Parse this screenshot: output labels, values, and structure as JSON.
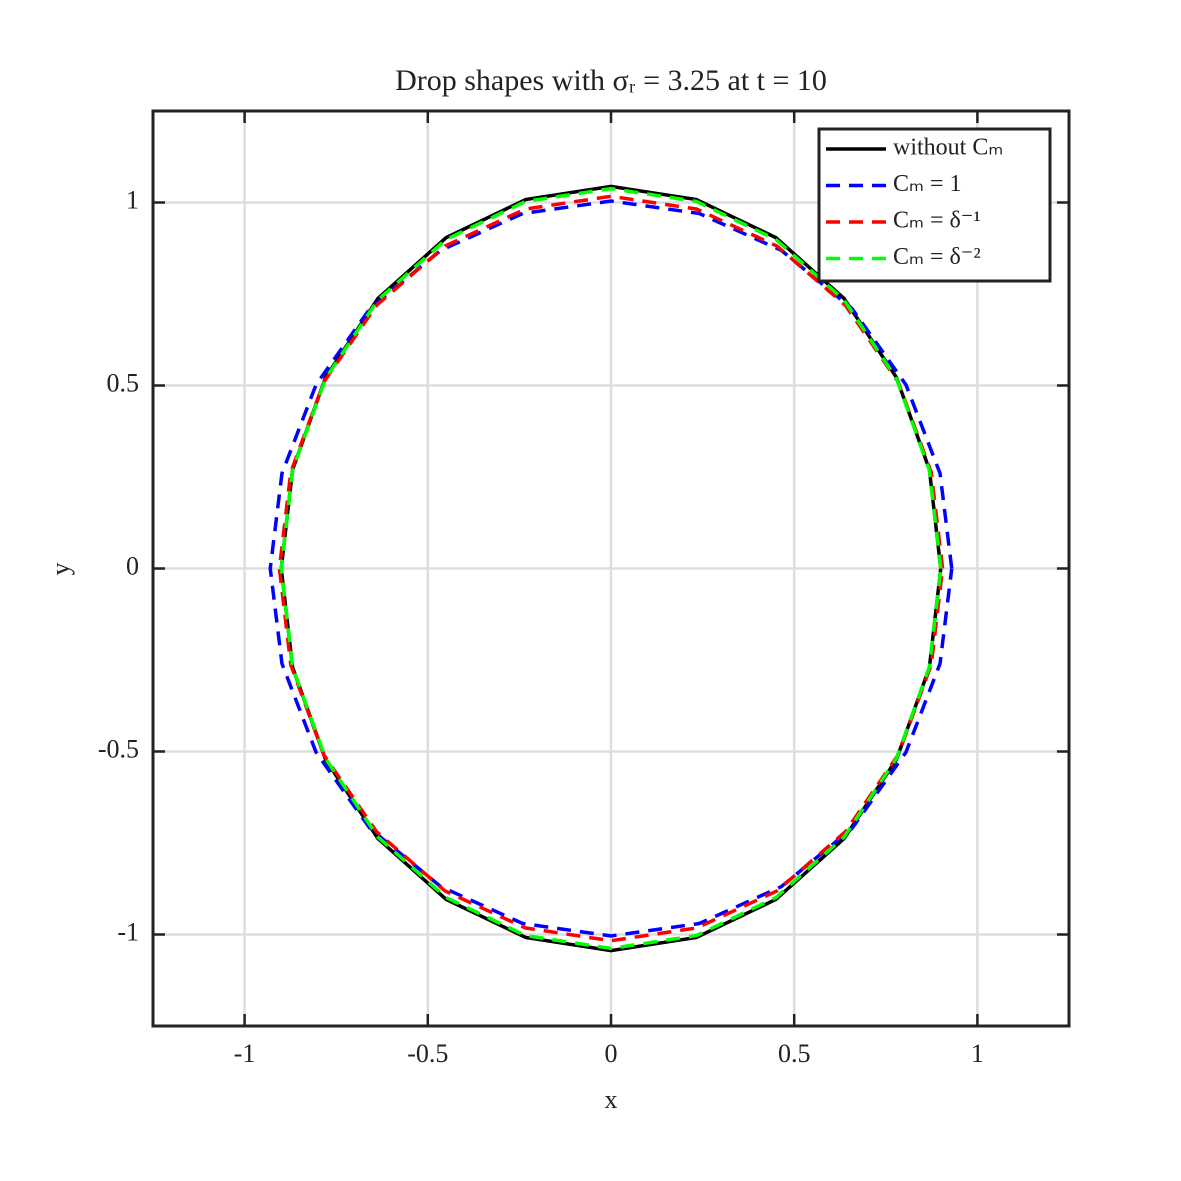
{
  "chart_data": {
    "type": "line",
    "title": "Drop shapes with σᵣ = 3.25 at t = 10",
    "xlabel": "x",
    "ylabel": "y",
    "xlim": [
      -1.25,
      1.25
    ],
    "ylim": [
      -1.25,
      1.25
    ],
    "xticks": [
      -1,
      -0.5,
      0,
      0.5,
      1
    ],
    "yticks": [
      -1,
      -0.5,
      0,
      0.5,
      1
    ],
    "grid": true,
    "legend_loc": "upper-right",
    "series": [
      {
        "name": "without Cₘ",
        "color": "#000000",
        "style": "solid",
        "x": [
          0.9,
          0.869,
          0.779,
          0.636,
          0.45,
          0.233,
          0,
          -0.233,
          -0.45,
          -0.636,
          -0.779,
          -0.869,
          -0.9,
          -0.869,
          -0.779,
          -0.636,
          -0.45,
          -0.233,
          0,
          0.233,
          0.45,
          0.636,
          0.779,
          0.869,
          0.9
        ],
        "values": [
          0,
          0.27,
          0.522,
          0.738,
          0.904,
          1.008,
          1.044,
          1.008,
          0.904,
          0.738,
          0.522,
          0.27,
          0,
          -0.27,
          -0.522,
          -0.738,
          -0.904,
          -1.008,
          -1.044,
          -1.008,
          -0.904,
          -0.738,
          -0.522,
          -0.27,
          0
        ]
      },
      {
        "name": "Cₘ = 1",
        "color": "#0000ff",
        "style": "dashed",
        "x": [
          0.93,
          0.898,
          0.805,
          0.658,
          0.465,
          0.241,
          0,
          -0.241,
          -0.465,
          -0.658,
          -0.805,
          -0.898,
          -0.93,
          -0.898,
          -0.805,
          -0.658,
          -0.465,
          -0.241,
          0,
          0.241,
          0.465,
          0.658,
          0.805,
          0.898,
          0.93
        ],
        "values": [
          0,
          0.26,
          0.502,
          0.71,
          0.869,
          0.97,
          1.004,
          0.97,
          0.869,
          0.71,
          0.502,
          0.26,
          0,
          -0.26,
          -0.502,
          -0.71,
          -0.869,
          -0.97,
          -1.004,
          -0.97,
          -0.869,
          -0.71,
          -0.502,
          -0.26,
          0
        ]
      },
      {
        "name": "Cₘ = δ⁻¹",
        "color": "#ff0000",
        "style": "dashed",
        "x": [
          0.905,
          0.874,
          0.784,
          0.64,
          0.453,
          0.234,
          0,
          -0.234,
          -0.453,
          -0.64,
          -0.784,
          -0.874,
          -0.905,
          -0.874,
          -0.784,
          -0.64,
          -0.453,
          -0.234,
          0,
          0.234,
          0.453,
          0.64,
          0.784,
          0.874,
          0.905
        ],
        "values": [
          0,
          0.263,
          0.509,
          0.719,
          0.881,
          0.982,
          1.017,
          0.982,
          0.881,
          0.719,
          0.509,
          0.263,
          0,
          -0.263,
          -0.509,
          -0.719,
          -0.881,
          -0.982,
          -1.017,
          -0.982,
          -0.881,
          -0.719,
          -0.509,
          -0.263,
          0
        ]
      },
      {
        "name": "Cₘ = δ⁻²",
        "color": "#00ff00",
        "style": "dashed",
        "x": [
          0.9,
          0.869,
          0.779,
          0.636,
          0.45,
          0.233,
          0,
          -0.233,
          -0.45,
          -0.636,
          -0.779,
          -0.869,
          -0.9,
          -0.869,
          -0.779,
          -0.636,
          -0.45,
          -0.233,
          0,
          0.233,
          0.45,
          0.636,
          0.779,
          0.869,
          0.9
        ],
        "values": [
          0,
          0.269,
          0.519,
          0.734,
          0.899,
          1.003,
          1.038,
          1.003,
          0.899,
          0.734,
          0.519,
          0.269,
          0,
          -0.269,
          -0.519,
          -0.734,
          -0.899,
          -1.003,
          -1.038,
          -1.003,
          -0.899,
          -0.734,
          -0.519,
          -0.269,
          0
        ]
      }
    ]
  }
}
